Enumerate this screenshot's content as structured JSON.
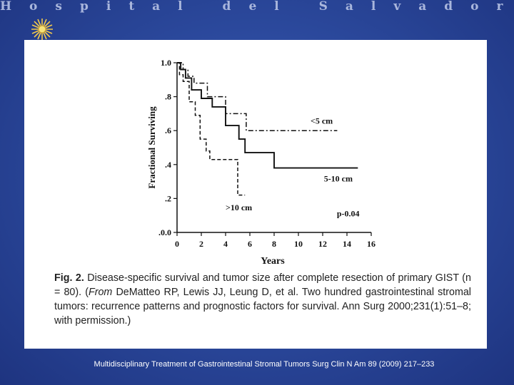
{
  "header": {
    "title": "Hospital del Salvador"
  },
  "chart_data": {
    "type": "line",
    "title": "",
    "xlabel": "Years",
    "ylabel": "Fractional Surviving",
    "xlim": [
      0,
      16
    ],
    "ylim": [
      0,
      1.0
    ],
    "xticks": [
      0,
      2,
      4,
      6,
      8,
      10,
      12,
      14,
      16
    ],
    "xtick_labels": [
      "0",
      "2",
      "4",
      "6",
      "8",
      "10",
      "12",
      "14",
      "16"
    ],
    "yticks": [
      0,
      0.2,
      0.4,
      0.6,
      0.8,
      1.0
    ],
    "ytick_labels": [
      ".0.0",
      ".2",
      ".4",
      ".6",
      ".8",
      "1.0"
    ],
    "grid": false,
    "annotation": "p-0.04",
    "series": [
      {
        "name": "<5 cm",
        "style": "dashdot",
        "points": [
          [
            0,
            1.0
          ],
          [
            0.5,
            1.0
          ],
          [
            0.5,
            0.96
          ],
          [
            0.9,
            0.96
          ],
          [
            0.9,
            0.92
          ],
          [
            1.4,
            0.92
          ],
          [
            1.4,
            0.88
          ],
          [
            2.5,
            0.88
          ],
          [
            2.5,
            0.8
          ],
          [
            4.0,
            0.8
          ],
          [
            4.0,
            0.7
          ],
          [
            5.7,
            0.7
          ],
          [
            5.7,
            0.6
          ],
          [
            13.2,
            0.6
          ]
        ]
      },
      {
        "name": "5-10 cm",
        "style": "solid",
        "points": [
          [
            0,
            1.0
          ],
          [
            0.3,
            1.0
          ],
          [
            0.3,
            0.96
          ],
          [
            0.7,
            0.96
          ],
          [
            0.7,
            0.91
          ],
          [
            1.2,
            0.91
          ],
          [
            1.2,
            0.84
          ],
          [
            2.0,
            0.84
          ],
          [
            2.0,
            0.79
          ],
          [
            2.9,
            0.79
          ],
          [
            2.9,
            0.74
          ],
          [
            4.0,
            0.74
          ],
          [
            4.0,
            0.63
          ],
          [
            5.1,
            0.63
          ],
          [
            5.1,
            0.55
          ],
          [
            5.6,
            0.55
          ],
          [
            5.6,
            0.47
          ],
          [
            8.0,
            0.47
          ],
          [
            8.0,
            0.38
          ],
          [
            14.9,
            0.38
          ]
        ]
      },
      {
        "name": ">10 cm",
        "style": "dashed",
        "points": [
          [
            0,
            1.0
          ],
          [
            0.2,
            1.0
          ],
          [
            0.2,
            0.93
          ],
          [
            0.5,
            0.93
          ],
          [
            0.5,
            0.89
          ],
          [
            1.0,
            0.89
          ],
          [
            1.0,
            0.77
          ],
          [
            1.5,
            0.77
          ],
          [
            1.5,
            0.69
          ],
          [
            1.9,
            0.69
          ],
          [
            1.9,
            0.55
          ],
          [
            2.4,
            0.55
          ],
          [
            2.4,
            0.48
          ],
          [
            2.7,
            0.48
          ],
          [
            2.7,
            0.43
          ],
          [
            5.0,
            0.43
          ],
          [
            5.0,
            0.22
          ],
          [
            5.6,
            0.22
          ]
        ]
      }
    ],
    "series_labels": [
      {
        "name": "<5 cm",
        "x": 11.0,
        "y": 0.64
      },
      {
        "name": "5-10 cm",
        "x": 12.1,
        "y": 0.3
      },
      {
        "name": ">10 cm",
        "x": 4.0,
        "y": 0.13
      }
    ]
  },
  "caption": {
    "fig_label": "Fig. 2.",
    "part1": " Disease-specific survival and tumor size after complete resection of primary GIST (n = 80). (",
    "from_italic": "From",
    "part2": " DeMatteo RP, Lewis JJ, Leung D, et al. Two hundred gastrointestinal stromal tumors: recurrence patterns and prognostic factors for survival. Ann Surg 2000;231(1):51–8; with permission.)"
  },
  "footer": {
    "citation": "Multidisciplinary Treatment of Gastrointestinal Stromal Tumors Surg Clin N Am 89 (2009) 217–233"
  },
  "colors": {
    "background": "#2c4a9e",
    "header_text": "#a9b6dc",
    "logo": "#f2c94c",
    "panel": "#ffffff",
    "ink": "#111111"
  },
  "icons": {
    "logo": "sun-emblem-icon"
  }
}
